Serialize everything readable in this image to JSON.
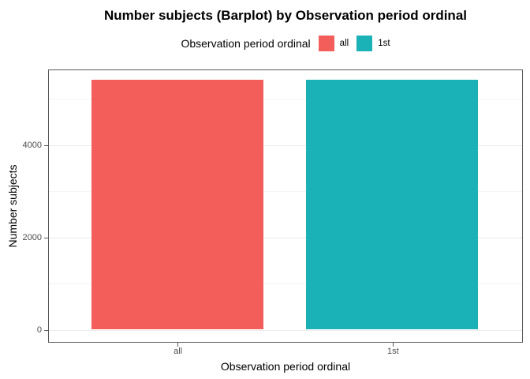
{
  "figure": {
    "title": "Number subjects (Barplot) by Observation period ordinal"
  },
  "legend": {
    "title": "Observation period ordinal",
    "position": "top",
    "items": [
      {
        "label": "all",
        "color": "#F35E5A"
      },
      {
        "label": "1st",
        "color": "#1AB2B7"
      }
    ]
  },
  "axes": {
    "x_title": "Observation period ordinal",
    "y_title": "Number subjects",
    "x_tick_labels": [
      "all",
      "1st"
    ],
    "y_tick_labels": [
      "0",
      "2000",
      "4000"
    ]
  },
  "colors": {
    "bar_all": "#F35E5A",
    "bar_1st": "#1AB2B7",
    "panel_border": "#595959",
    "grid_major": "#EBEBEB",
    "grid_minor": "#F5F5F5",
    "tick_text": "#4D4D4D",
    "background": "#FFFFFF"
  },
  "chart_data": {
    "type": "bar",
    "title": "Number subjects (Barplot) by Observation period ordinal",
    "categories": [
      "all",
      "1st"
    ],
    "values": [
      5400,
      5400
    ],
    "colors": [
      "#F35E5A",
      "#1AB2B7"
    ],
    "xlabel": "Observation period ordinal",
    "ylabel": "Number subjects",
    "ylim": [
      -250,
      5630
    ],
    "yticks": [
      0,
      2000,
      4000
    ],
    "yticks_minor": [
      1000,
      3000,
      5000
    ],
    "bar_width_fraction": 0.8,
    "grid": true,
    "legend_position": "top",
    "legend_title": "Observation period ordinal",
    "legend_entries": [
      "all",
      "1st"
    ]
  }
}
